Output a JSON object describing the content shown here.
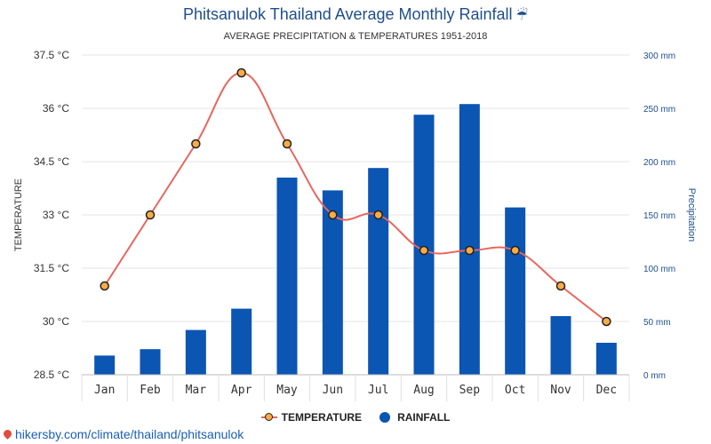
{
  "header": {
    "title": "Phitsanulok Thailand Average Monthly Rainfall",
    "title_icon": "umbrella-rain-icon",
    "subtitle": "AVERAGE PRECIPITATION & TEMPERATURES 1951-2018"
  },
  "legend": {
    "temperature_label": "TEMPERATURE",
    "rainfall_label": "RAINFALL"
  },
  "footer": {
    "url": "hikersby.com/climate/thailand/phitsanulok",
    "icon": "map-pin-icon"
  },
  "colors": {
    "bar": "#0b55b3",
    "line": "#e8665e",
    "marker_fill": "#f6ac45",
    "marker_stroke": "#222222",
    "grid": "#e6e6e6",
    "left_axis_text": "#333333",
    "right_axis_text": "#1f4e8c"
  },
  "chart_data": {
    "type": "bar",
    "combo": "bar+line",
    "title": "Phitsanulok Thailand Average Monthly Rainfall",
    "subtitle": "AVERAGE PRECIPITATION & TEMPERATURES 1951-2018",
    "categories": [
      "Jan",
      "Feb",
      "Mar",
      "Apr",
      "May",
      "Jun",
      "Jul",
      "Aug",
      "Sep",
      "Oct",
      "Nov",
      "Dec"
    ],
    "series": [
      {
        "name": "RAINFALL",
        "type": "bar",
        "axis": "right",
        "values": [
          18,
          24,
          42,
          62,
          185,
          173,
          194,
          244,
          254,
          157,
          55,
          30
        ]
      },
      {
        "name": "TEMPERATURE",
        "type": "line",
        "axis": "left",
        "values": [
          31,
          33,
          35,
          37,
          35,
          33,
          33,
          32,
          32,
          32,
          31,
          30
        ]
      }
    ],
    "ylabel_left": "TEMPERATURE",
    "ylabel_right": "Precipitation",
    "ylim_left": [
      28.5,
      37.5
    ],
    "ylim_right": [
      0,
      300
    ],
    "yticks_left": [
      "37.5 °C",
      "36 °C",
      "34.5 °C",
      "33 °C",
      "31.5 °C",
      "30 °C",
      "28.5 °C"
    ],
    "yticks_left_values": [
      37.5,
      36,
      34.5,
      33,
      31.5,
      30,
      28.5
    ],
    "yticks_right": [
      "300 mm",
      "250 mm",
      "200 mm",
      "150 mm",
      "100 mm",
      "50 mm",
      "0 mm"
    ],
    "yticks_right_values": [
      300,
      250,
      200,
      150,
      100,
      50,
      0
    ],
    "grid": true,
    "legend_position": "bottom-center"
  }
}
